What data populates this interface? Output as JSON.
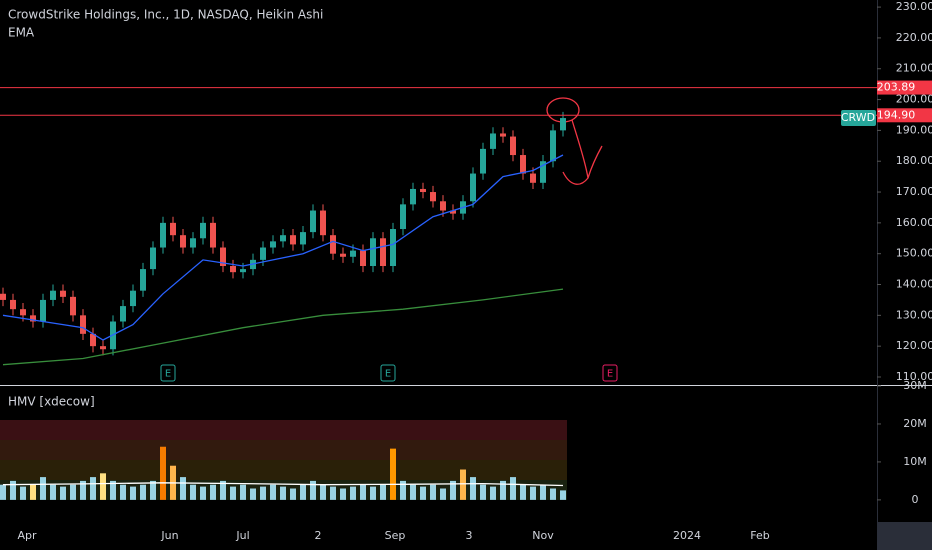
{
  "chart_data": [
    {
      "type": "candlestick",
      "title": "CrowdStrike Holdings, Inc., 1D, NASDAQ, Heikin Ashi",
      "indicator": "EMA",
      "ticker": "CRWD",
      "xlim": [
        -0.3,
        87.4
      ],
      "ylim": [
        107.4,
        232.3
      ],
      "yticks": [
        {
          "value": 110,
          "label": "110.00"
        },
        {
          "value": 120,
          "label": "120.00"
        },
        {
          "value": 130,
          "label": "130.00"
        },
        {
          "value": 140,
          "label": "140.00"
        },
        {
          "value": 150,
          "label": "150.00"
        },
        {
          "value": 160,
          "label": "160.00"
        },
        {
          "value": 170,
          "label": "170.00"
        },
        {
          "value": 180,
          "label": "180.00"
        },
        {
          "value": 190,
          "label": "190.00"
        },
        {
          "value": 200,
          "label": "200.00"
        },
        {
          "value": 210,
          "label": "210.00"
        },
        {
          "value": 220,
          "label": "220.00"
        },
        {
          "value": 230,
          "label": "230.00"
        }
      ],
      "open": [
        137,
        135,
        132,
        130,
        128,
        135,
        138,
        136,
        130,
        124,
        120,
        119,
        128,
        133,
        138,
        145,
        152,
        160,
        156,
        152,
        155,
        160,
        152,
        146,
        144,
        145,
        148,
        152,
        154,
        156,
        153,
        157,
        164,
        156,
        150,
        149,
        151,
        146,
        155,
        146,
        158,
        166,
        171,
        170,
        167,
        164,
        163,
        167,
        176,
        184,
        189,
        188,
        182,
        176,
        173,
        180,
        190
      ],
      "high": [
        139,
        137,
        134,
        132,
        137,
        140,
        140,
        138,
        132,
        126,
        122,
        130,
        135,
        140,
        147,
        154,
        162,
        162,
        158,
        157,
        162,
        162,
        154,
        148,
        147,
        150,
        154,
        156,
        158,
        158,
        159,
        166,
        166,
        158,
        152,
        153,
        153,
        157,
        157,
        160,
        168,
        173,
        173,
        172,
        169,
        166,
        169,
        178,
        186,
        191,
        191,
        190,
        184,
        178,
        182,
        192,
        196
      ],
      "low": [
        133,
        130,
        128,
        126,
        126,
        133,
        134,
        128,
        122,
        118,
        117,
        117,
        126,
        131,
        136,
        143,
        150,
        154,
        150,
        150,
        153,
        150,
        144,
        142,
        142,
        143,
        146,
        150,
        152,
        151,
        151,
        155,
        154,
        148,
        147,
        147,
        144,
        144,
        144,
        144,
        156,
        164,
        168,
        165,
        162,
        161,
        161,
        165,
        174,
        182,
        186,
        180,
        174,
        171,
        171,
        178,
        188
      ],
      "close": [
        135,
        132,
        130,
        128,
        135,
        138,
        136,
        130,
        124,
        120,
        119,
        128,
        133,
        138,
        145,
        152,
        160,
        156,
        152,
        155,
        160,
        152,
        146,
        144,
        145,
        148,
        152,
        154,
        156,
        153,
        157,
        164,
        156,
        150,
        149,
        151,
        146,
        155,
        146,
        158,
        166,
        171,
        170,
        167,
        164,
        163,
        167,
        176,
        184,
        189,
        188,
        182,
        176,
        173,
        180,
        190,
        194
      ],
      "up_color": "#26a69a",
      "down_color": "#ef5350",
      "lines": [
        {
          "color": "#2962ff",
          "x": [
            0,
            4,
            8,
            10,
            13,
            16,
            20,
            24,
            30,
            33,
            36,
            39,
            43,
            47,
            50,
            53,
            56
          ],
          "values": [
            130,
            128,
            126,
            122,
            127,
            137,
            148,
            146,
            150,
            154,
            151,
            153,
            162,
            166,
            175,
            177,
            182
          ]
        },
        {
          "color": "#388e3c",
          "x": [
            0,
            8,
            16,
            24,
            32,
            40,
            48,
            56
          ],
          "values": [
            114,
            116,
            121,
            126,
            130,
            132,
            135,
            138.5
          ]
        }
      ],
      "levels": [
        {
          "value": 203.89,
          "label": "203.89",
          "color": "#f23645"
        },
        {
          "value": 194.9,
          "label": "194.90",
          "color": "#f23645"
        }
      ],
      "earnings": [
        {
          "x": 16.5,
          "label": "E",
          "color": "#26a69a"
        },
        {
          "x": 38.5,
          "label": "E",
          "color": "#26a69a"
        },
        {
          "x": 60.7,
          "label": "E",
          "color": "#e91e63"
        }
      ]
    },
    {
      "type": "bar",
      "title": "HMV [xdecow]",
      "xlim": [
        -0.3,
        87.4
      ],
      "ylim": [
        -5.3,
        30
      ],
      "yticks": [
        0,
        {
          "value": 10,
          "label": "10M"
        },
        {
          "value": 20,
          "label": "20M"
        },
        {
          "value": 30,
          "label": "30M"
        }
      ],
      "xticks": [
        {
          "value": 2.4,
          "label": "Apr"
        },
        {
          "value": 16.7,
          "label": "Jun"
        },
        {
          "value": 24,
          "label": "Jul"
        },
        {
          "value": 31.5,
          "label": "2"
        },
        {
          "value": 39.2,
          "label": "Sep"
        },
        {
          "value": 46.6,
          "label": "3"
        },
        {
          "value": 54,
          "label": "Nov"
        },
        {
          "value": 68.4,
          "label": "2024"
        },
        {
          "value": 75.7,
          "label": "Feb"
        }
      ],
      "values": [
        4,
        5,
        3.5,
        4,
        6,
        4,
        3.5,
        4,
        5,
        6,
        7,
        5,
        4,
        3.5,
        4,
        5,
        14,
        9,
        6,
        4,
        3.5,
        4,
        5,
        3.5,
        4,
        3,
        3.5,
        4,
        3.5,
        3,
        4,
        5,
        4,
        3.5,
        3,
        3.5,
        4,
        3.5,
        4,
        13.5,
        5,
        4,
        3.5,
        4,
        3,
        5,
        8,
        6,
        4,
        3.5,
        5,
        6,
        4,
        3.5,
        4,
        3,
        2.5
      ],
      "colors": [
        "#9ad4e4",
        "#9ad4e4",
        "#9ad4e4",
        "#ffe082",
        "#9ad4e4",
        "#9ad4e4",
        "#9ad4e4",
        "#9ad4e4",
        "#9ad4e4",
        "#9ad4e4",
        "#ffe082",
        "#9ad4e4",
        "#9ad4e4",
        "#9ad4e4",
        "#9ad4e4",
        "#9ad4e4",
        "#f57c00",
        "#ffb74d",
        "#9ad4e4",
        "#9ad4e4",
        "#9ad4e4",
        "#9ad4e4",
        "#9ad4e4",
        "#9ad4e4",
        "#9ad4e4",
        "#9ad4e4",
        "#9ad4e4",
        "#9ad4e4",
        "#9ad4e4",
        "#9ad4e4",
        "#9ad4e4",
        "#9ad4e4",
        "#9ad4e4",
        "#9ad4e4",
        "#9ad4e4",
        "#9ad4e4",
        "#9ad4e4",
        "#9ad4e4",
        "#9ad4e4",
        "#ff9800",
        "#9ad4e4",
        "#9ad4e4",
        "#9ad4e4",
        "#9ad4e4",
        "#9ad4e4",
        "#9ad4e4",
        "#ffb74d",
        "#9ad4e4",
        "#9ad4e4",
        "#9ad4e4",
        "#9ad4e4",
        "#9ad4e4",
        "#9ad4e4",
        "#9ad4e4",
        "#9ad4e4",
        "#9ad4e4",
        "#9ad4e4"
      ],
      "lines": [
        {
          "color": "#ffffff",
          "x": [
            0,
            8,
            16,
            24,
            32,
            40,
            48,
            56
          ],
          "values": [
            4,
            4.2,
            4.5,
            4.3,
            4,
            4.1,
            4.3,
            3.8
          ]
        }
      ]
    }
  ]
}
